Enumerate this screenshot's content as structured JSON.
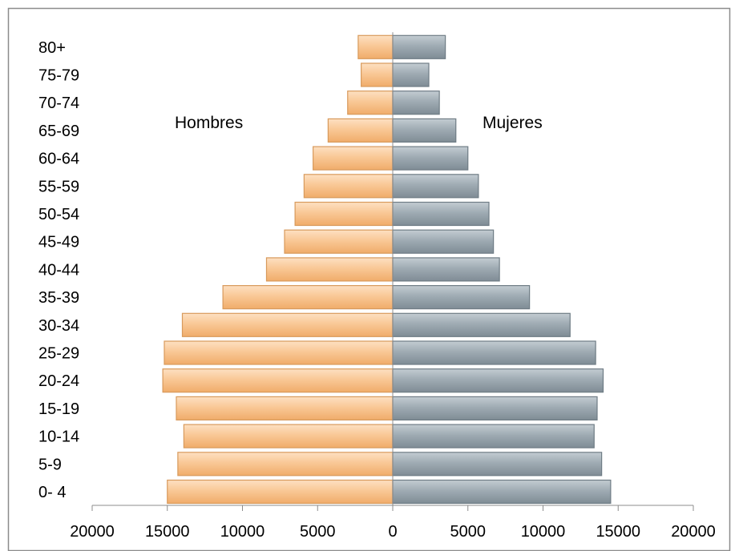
{
  "chart_data": {
    "type": "bar",
    "orientation": "horizontal",
    "subtype": "population-pyramid",
    "categories": [
      "0- 4",
      "5-9",
      "10-14",
      "15-19",
      "20-24",
      "25-29",
      "30-34",
      "35-39",
      "40-44",
      "45-49",
      "50-54",
      "55-59",
      "60-64",
      "65-69",
      "70-74",
      "75-79",
      "80+"
    ],
    "series": [
      {
        "name": "Hombres",
        "side": "left",
        "color": "#f8c18a",
        "values": [
          15000,
          14300,
          13900,
          14400,
          15300,
          15200,
          14000,
          11300,
          8400,
          7200,
          6500,
          5900,
          5300,
          4300,
          3000,
          2100,
          2300
        ]
      },
      {
        "name": "Mujeres",
        "side": "right",
        "color": "#98a4ad",
        "values": [
          14500,
          13900,
          13400,
          13600,
          14000,
          13500,
          11800,
          9100,
          7100,
          6700,
          6400,
          5700,
          5000,
          4200,
          3100,
          2400,
          3500
        ]
      }
    ],
    "xaxis": {
      "range": [
        -20000,
        20000
      ],
      "ticks": [
        -20000,
        -15000,
        -10000,
        -5000,
        0,
        5000,
        10000,
        15000,
        20000
      ],
      "tick_labels": [
        "20000",
        "15000",
        "10000",
        "5000",
        "0",
        "5000",
        "10000",
        "15000",
        "20000"
      ]
    },
    "title": "",
    "xlabel": "",
    "ylabel": "",
    "grid": false,
    "legend": "none"
  }
}
